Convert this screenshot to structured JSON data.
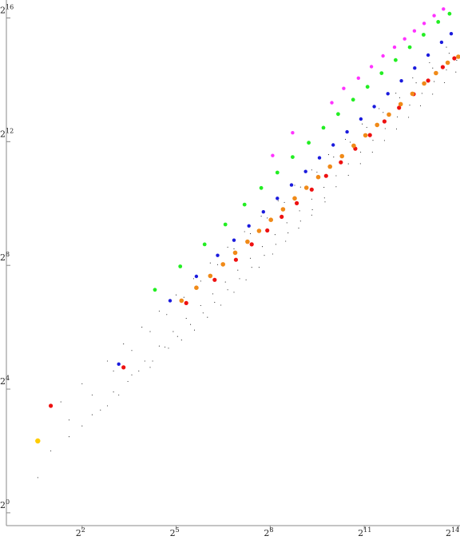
{
  "chart_data": {
    "type": "scatter",
    "title": "",
    "xlabel": "",
    "ylabel": "",
    "x_scale": "log2",
    "y_scale": "log2",
    "xlim": [
      0.75,
      17000
    ],
    "ylim": [
      0.75,
      98000
    ],
    "grid": false,
    "x_ticks": [
      {
        "value": 4,
        "base": "2",
        "exp": "2"
      },
      {
        "value": 32,
        "base": "2",
        "exp": "5"
      },
      {
        "value": 256,
        "base": "2",
        "exp": "8"
      },
      {
        "value": 2048,
        "base": "2",
        "exp": "11"
      },
      {
        "value": 16384,
        "base": "2",
        "exp": "14"
      }
    ],
    "y_ticks": [
      {
        "value": 1,
        "base": "2",
        "exp": "0"
      },
      {
        "value": 16,
        "base": "2",
        "exp": "4"
      },
      {
        "value": 256,
        "base": "2",
        "exp": "8"
      },
      {
        "value": 4096,
        "base": "2",
        "exp": "12"
      },
      {
        "value": 65536,
        "base": "2",
        "exp": "16"
      }
    ],
    "series": [
      {
        "color": "#ff33ff",
        "size": 2.2,
        "points": [
          [
            270,
            3000
          ],
          [
            420,
            5000
          ],
          [
            1000,
            9800
          ],
          [
            1300,
            13500
          ],
          [
            1800,
            17000
          ],
          [
            2400,
            22000
          ],
          [
            3100,
            28000
          ],
          [
            4000,
            34000
          ],
          [
            5000,
            41000
          ],
          [
            6200,
            49000
          ],
          [
            7700,
            58000
          ],
          [
            9600,
            69000
          ],
          [
            11800,
            80000
          ]
        ]
      },
      {
        "color": "#22ee22",
        "size": 2.4,
        "points": [
          [
            20,
            148
          ],
          [
            35,
            250
          ],
          [
            60,
            410
          ],
          [
            95,
            640
          ],
          [
            145,
            1000
          ],
          [
            210,
            1450
          ],
          [
            300,
            2050
          ],
          [
            420,
            2900
          ],
          [
            600,
            4000
          ],
          [
            830,
            5600
          ],
          [
            1150,
            7600
          ],
          [
            1600,
            10500
          ],
          [
            2200,
            14000
          ],
          [
            3000,
            19000
          ],
          [
            4100,
            25500
          ],
          [
            5600,
            34000
          ],
          [
            7600,
            45000
          ],
          [
            10500,
            60000
          ],
          [
            13500,
            72000
          ]
        ]
      },
      {
        "color": "#1b1bdd",
        "size": 2.2,
        "points": [
          [
            9,
            28
          ],
          [
            28,
            116
          ],
          [
            50,
            200
          ],
          [
            80,
            320
          ],
          [
            115,
            450
          ],
          [
            160,
            620
          ],
          [
            220,
            850
          ],
          [
            300,
            1150
          ],
          [
            410,
            1550
          ],
          [
            560,
            2100
          ],
          [
            760,
            2850
          ],
          [
            1030,
            3800
          ],
          [
            1400,
            5100
          ],
          [
            1900,
            6800
          ],
          [
            2550,
            9000
          ],
          [
            3450,
            12000
          ],
          [
            4650,
            16000
          ],
          [
            6250,
            21300
          ],
          [
            8400,
            28500
          ],
          [
            11300,
            38000
          ],
          [
            14000,
            46000
          ]
        ]
      },
      {
        "color": "#f08a18",
        "size": 2.8,
        "points": [
          [
            36,
            116
          ],
          [
            50,
            155
          ],
          [
            68,
            202
          ],
          [
            90,
            262
          ],
          [
            118,
            340
          ],
          [
            155,
            435
          ],
          [
            200,
            555
          ],
          [
            260,
            710
          ],
          [
            340,
            900
          ],
          [
            440,
            1150
          ],
          [
            570,
            1460
          ],
          [
            740,
            1850
          ],
          [
            960,
            2340
          ],
          [
            1250,
            2960
          ],
          [
            1620,
            3740
          ],
          [
            2100,
            4720
          ],
          [
            2720,
            5960
          ],
          [
            3530,
            7520
          ],
          [
            4580,
            9490
          ],
          [
            5940,
            11970
          ],
          [
            7700,
            15100
          ],
          [
            9990,
            19050
          ],
          [
            12960,
            24030
          ],
          [
            16384,
            27500
          ]
        ]
      },
      {
        "color": "#ee1111",
        "size": 2.6,
        "points": [
          [
            2,
            11
          ],
          [
            10,
            26
          ],
          [
            40,
            110
          ],
          [
            75,
            185
          ],
          [
            120,
            290
          ],
          [
            170,
            410
          ],
          [
            240,
            560
          ],
          [
            330,
            760
          ],
          [
            460,
            1030
          ],
          [
            640,
            1400
          ],
          [
            880,
            1900
          ],
          [
            1220,
            2580
          ],
          [
            1680,
            3500
          ],
          [
            2320,
            4750
          ],
          [
            3200,
            6450
          ],
          [
            4420,
            8750
          ],
          [
            6100,
            11900
          ],
          [
            8400,
            16100
          ],
          [
            11600,
            21800
          ],
          [
            15000,
            26500
          ]
        ]
      },
      {
        "color": "#ffcc00",
        "size": 3.2,
        "points": [
          [
            1.5,
            5
          ]
        ]
      },
      {
        "color": "#111111",
        "size": 0.55,
        "points": [
          [
            1.5,
            2.2
          ],
          [
            2,
            4
          ],
          [
            3,
            5.5
          ],
          [
            4,
            7
          ],
          [
            5,
            9
          ],
          [
            7,
            11
          ],
          [
            9,
            14
          ],
          [
            11,
            19
          ],
          [
            14,
            24
          ],
          [
            19,
            30
          ],
          [
            25,
            41
          ],
          [
            33,
            52
          ],
          [
            44,
            68
          ],
          [
            58,
            88
          ],
          [
            75,
            112
          ],
          [
            100,
            148
          ],
          [
            130,
            190
          ],
          [
            170,
            245
          ],
          [
            225,
            320
          ],
          [
            290,
            410
          ],
          [
            380,
            530
          ],
          [
            500,
            690
          ],
          [
            650,
            890
          ],
          [
            850,
            1160
          ],
          [
            1100,
            1490
          ],
          [
            1440,
            1930
          ],
          [
            1880,
            2500
          ],
          [
            2450,
            3240
          ],
          [
            3200,
            4200
          ],
          [
            4180,
            5450
          ],
          [
            5450,
            7060
          ],
          [
            7100,
            9150
          ],
          [
            9270,
            11880
          ],
          [
            12080,
            15400
          ],
          [
            15500,
            19500
          ],
          [
            6,
            10
          ],
          [
            8,
            15
          ],
          [
            12,
            22
          ],
          [
            16,
            30
          ],
          [
            22,
            42
          ],
          [
            30,
            58
          ],
          [
            40,
            78
          ],
          [
            55,
            104
          ],
          [
            72,
            135
          ],
          [
            95,
            176
          ],
          [
            125,
            230
          ],
          [
            165,
            300
          ],
          [
            215,
            390
          ],
          [
            285,
            510
          ],
          [
            370,
            665
          ],
          [
            490,
            870
          ],
          [
            640,
            1130
          ],
          [
            840,
            1470
          ],
          [
            1100,
            1910
          ],
          [
            1440,
            2490
          ],
          [
            1890,
            3240
          ],
          [
            2480,
            4220
          ],
          [
            3250,
            5490
          ],
          [
            4260,
            7140
          ],
          [
            5590,
            9290
          ],
          [
            7330,
            12090
          ],
          [
            9610,
            15740
          ],
          [
            12600,
            20470
          ],
          [
            15800,
            25300
          ],
          [
            3,
            8
          ],
          [
            5,
            14
          ],
          [
            8,
            24
          ],
          [
            12,
            38
          ],
          [
            18,
            58
          ],
          [
            26,
            85
          ],
          [
            38,
            125
          ],
          [
            55,
            180
          ],
          [
            80,
            260
          ],
          [
            115,
            370
          ],
          [
            165,
            520
          ],
          [
            240,
            740
          ],
          [
            350,
            1050
          ],
          [
            500,
            1480
          ],
          [
            720,
            2070
          ],
          [
            1040,
            2900
          ],
          [
            1500,
            4050
          ],
          [
            2160,
            5650
          ],
          [
            3110,
            7880
          ],
          [
            4480,
            10980
          ],
          [
            6450,
            15300
          ],
          [
            9290,
            21300
          ],
          [
            13380,
            29700
          ],
          [
            2.5,
            12
          ],
          [
            4,
            18
          ],
          [
            7,
            30
          ],
          [
            10,
            44
          ],
          [
            15,
            64
          ],
          [
            22,
            92
          ],
          [
            32,
            132
          ],
          [
            47,
            190
          ],
          [
            68,
            270
          ],
          [
            100,
            385
          ],
          [
            145,
            545
          ],
          [
            210,
            770
          ],
          [
            305,
            1090
          ],
          [
            440,
            1540
          ],
          [
            640,
            2170
          ],
          [
            930,
            3060
          ],
          [
            1350,
            4320
          ],
          [
            1960,
            6090
          ],
          [
            2840,
            8590
          ],
          [
            4120,
            12120
          ],
          [
            5980,
            17100
          ],
          [
            8680,
            24100
          ],
          [
            12590,
            34000
          ],
          [
            18,
            26
          ],
          [
            27,
            40
          ],
          [
            36,
            48
          ],
          [
            48,
            60
          ],
          [
            64,
            80
          ],
          [
            86,
            105
          ],
          [
            115,
            140
          ],
          [
            150,
            185
          ],
          [
            200,
            245
          ],
          [
            270,
            330
          ],
          [
            360,
            440
          ],
          [
            480,
            590
          ],
          [
            640,
            790
          ],
          [
            860,
            1060
          ]
        ]
      }
    ]
  }
}
